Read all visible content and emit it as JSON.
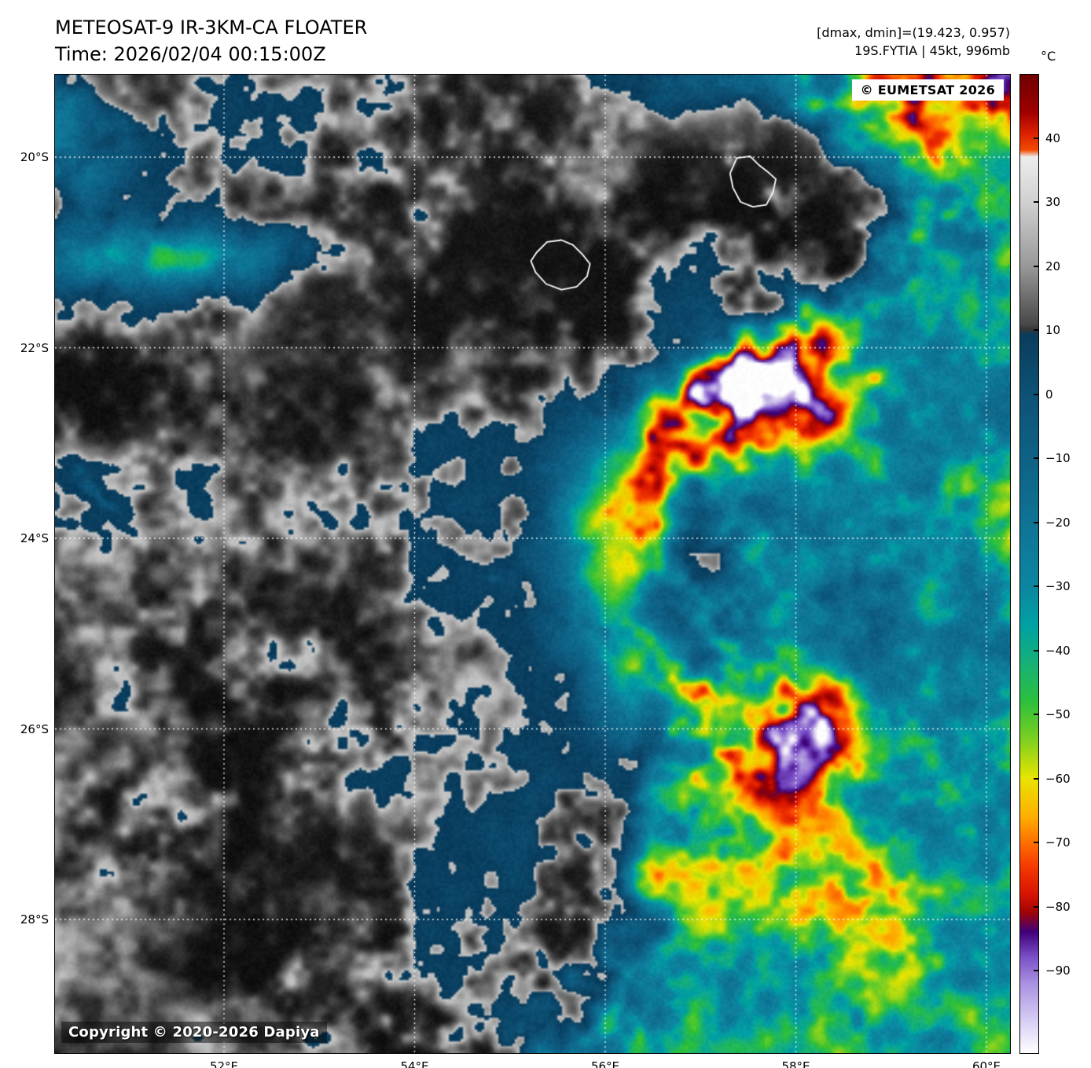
{
  "header": {
    "title": "METEOSAT-9 IR-3KM-CA FLOATER",
    "time": "Time: 2026/02/04 00:15:00Z"
  },
  "info": {
    "range": "[dmax, dmin]=(19.423, 0.957)",
    "storm": "19S.FYTIA | 45kt, 996mb"
  },
  "map": {
    "watermark": "© EUMETSAT 2026",
    "copyright": "Copyright © 2020-2026 Dapiya",
    "lat_ticks": [
      "20°S",
      "22°S",
      "24°S",
      "26°S",
      "28°S"
    ],
    "lon_ticks": [
      "52°E",
      "54°E",
      "56°E",
      "58°E",
      "60°E"
    ]
  },
  "colorbar": {
    "unit": "°C",
    "ticks": [
      "40",
      "30",
      "20",
      "10",
      "0",
      "−10",
      "−20",
      "−30",
      "−40",
      "−50",
      "−60",
      "−70",
      "−80",
      "−90"
    ]
  }
}
